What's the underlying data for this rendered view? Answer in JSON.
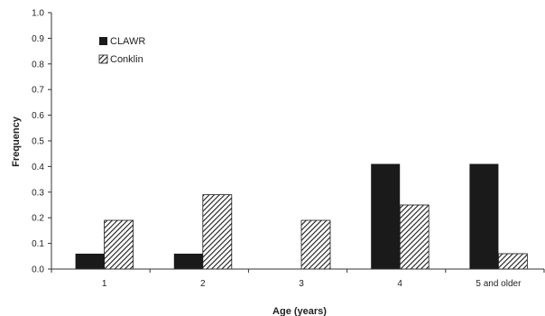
{
  "chart_data": {
    "type": "bar",
    "title": "",
    "xlabel": "Age (years)",
    "ylabel": "Frequency",
    "ylim": [
      0,
      1.0
    ],
    "yticks": [
      "0.0",
      "0.1",
      "0.2",
      "0.3",
      "0.4",
      "0.5",
      "0.6",
      "0.7",
      "0.8",
      "0.9",
      "1.0"
    ],
    "categories": [
      "1",
      "2",
      "3",
      "4",
      "5 and older"
    ],
    "series": [
      {
        "name": "CLAWR",
        "values": [
          0.06,
          0.06,
          0.0,
          0.41,
          0.41
        ],
        "fill": "solid",
        "color": "#1a1a1a"
      },
      {
        "name": "Conklin",
        "values": [
          0.19,
          0.29,
          0.19,
          0.25,
          0.06
        ],
        "fill": "hatched",
        "color": "#1a1a1a"
      }
    ],
    "grid": false,
    "legend_position": "top-left"
  }
}
